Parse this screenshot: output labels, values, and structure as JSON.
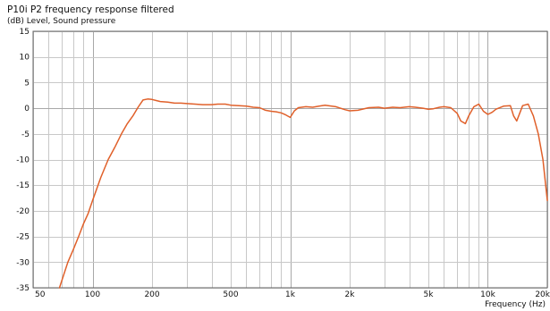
{
  "chart_data": {
    "type": "line",
    "title": "P10i P2 frequency response filtered",
    "ylabel": "(dB)  Level, Sound pressure",
    "xlabel": "Frequency  (Hz)",
    "xscale": "log",
    "xlim": [
      50,
      20000
    ],
    "ylim": [
      -35,
      15
    ],
    "grid": true,
    "legend": "none",
    "x_ticks": [
      {
        "value": 50,
        "label": "50"
      },
      {
        "value": 100,
        "label": "100"
      },
      {
        "value": 200,
        "label": "200"
      },
      {
        "value": 500,
        "label": "500"
      },
      {
        "value": 1000,
        "label": "1k"
      },
      {
        "value": 2000,
        "label": "2k"
      },
      {
        "value": 5000,
        "label": "5k"
      },
      {
        "value": 10000,
        "label": "10k"
      },
      {
        "value": 20000,
        "label": "20k"
      }
    ],
    "y_ticks": [
      15,
      10,
      5,
      0,
      -5,
      -10,
      -15,
      -20,
      -25,
      -30,
      -35
    ],
    "series": [
      {
        "color": "#e0602a",
        "x": [
          68,
          75,
          80,
          85,
          90,
          95,
          100,
          110,
          120,
          130,
          140,
          150,
          160,
          170,
          180,
          190,
          200,
          210,
          220,
          240,
          260,
          280,
          300,
          330,
          360,
          400,
          430,
          470,
          500,
          550,
          600,
          650,
          700,
          750,
          800,
          850,
          900,
          950,
          1000,
          1050,
          1100,
          1200,
          1300,
          1400,
          1500,
          1700,
          1900,
          2000,
          2200,
          2500,
          2800,
          3000,
          3300,
          3600,
          4000,
          4300,
          4700,
          5000,
          5300,
          5700,
          6000,
          6500,
          7000,
          7300,
          7700,
          8000,
          8500,
          9000,
          9500,
          10000,
          10500,
          11000,
          12000,
          13000,
          13500,
          14000,
          14500,
          15000,
          16000,
          17000,
          18000,
          19000,
          20000
        ],
        "values": [
          -35,
          -30,
          -27.5,
          -25,
          -22.5,
          -20.5,
          -18,
          -13.5,
          -10,
          -7.5,
          -5,
          -3,
          -1.5,
          0.2,
          1.6,
          1.8,
          1.7,
          1.5,
          1.3,
          1.2,
          1.0,
          1.0,
          0.9,
          0.8,
          0.7,
          0.7,
          0.8,
          0.8,
          0.6,
          0.5,
          0.4,
          0.2,
          0.1,
          -0.4,
          -0.6,
          -0.7,
          -0.9,
          -1.3,
          -1.8,
          -0.5,
          0.1,
          0.3,
          0.2,
          0.4,
          0.6,
          0.3,
          -0.3,
          -0.5,
          -0.4,
          0.1,
          0.2,
          0.0,
          0.2,
          0.1,
          0.3,
          0.2,
          0.0,
          -0.2,
          -0.1,
          0.2,
          0.3,
          0.1,
          -1.0,
          -2.5,
          -3.0,
          -1.5,
          0.3,
          0.8,
          -0.6,
          -1.2,
          -0.8,
          -0.2,
          0.4,
          0.5,
          -1.5,
          -2.5,
          -1.0,
          0.5,
          0.8,
          -1.5,
          -5,
          -10,
          -18
        ]
      }
    ]
  }
}
